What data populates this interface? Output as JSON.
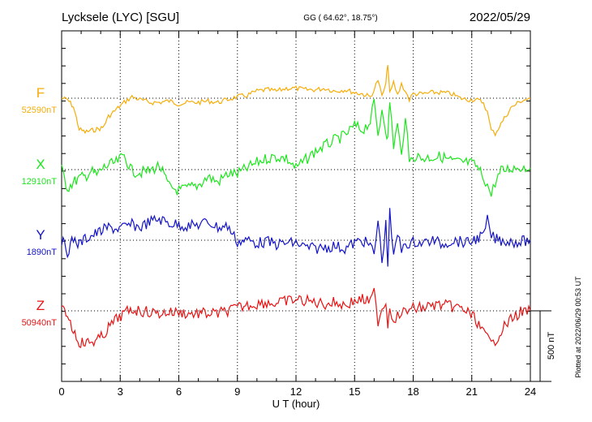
{
  "header": {
    "station": "Lycksele (LYC)  [SGU]",
    "coords": "GG ( 64.62°,  18.75°)",
    "date": "2022/05/29"
  },
  "footer": {
    "plotted": "Plotted at 2022/06/29 00:53 UT"
  },
  "colors": {
    "F": "#f5ad0a",
    "X": "#1ee61e",
    "Y": "#1414c8",
    "Z": "#e61414",
    "axis": "#000000",
    "grid": "#000000"
  },
  "chart_data": {
    "type": "line",
    "xlabel": "U T (hour)",
    "xlim": [
      0,
      24
    ],
    "xticks": [
      0,
      3,
      6,
      9,
      12,
      15,
      18,
      21,
      24
    ],
    "scale_bar": {
      "value": 500,
      "label": "500 nT"
    },
    "series": [
      {
        "name": "F",
        "baseline_label": "52590nT",
        "baseline": 52590,
        "x": [
          0,
          0.3,
          0.6,
          0.9,
          1.2,
          1.5,
          1.8,
          2.1,
          2.4,
          2.8,
          3.2,
          3.6,
          4.0,
          4.5,
          5.0,
          5.5,
          6.0,
          6.5,
          7.0,
          7.5,
          8.0,
          8.5,
          9.0,
          9.5,
          10.0,
          10.5,
          11.0,
          11.5,
          12.0,
          12.5,
          13.0,
          13.5,
          14.0,
          14.5,
          15.0,
          15.4,
          15.8,
          16.0,
          16.2,
          16.4,
          16.6,
          16.7,
          16.8,
          17.0,
          17.2,
          17.4,
          17.6,
          17.8,
          18.0,
          18.5,
          19.0,
          19.5,
          20.0,
          20.4,
          20.8,
          21.2,
          21.6,
          21.8,
          22.0,
          22.2,
          22.5,
          23.0,
          23.5,
          24.0
        ],
        "values": [
          52590,
          52580,
          52530,
          52370,
          52350,
          52360,
          52370,
          52380,
          52460,
          52510,
          52560,
          52600,
          52580,
          52560,
          52560,
          52570,
          52550,
          52560,
          52560,
          52570,
          52560,
          52580,
          52600,
          52610,
          52640,
          52650,
          52640,
          52660,
          52660,
          52650,
          52650,
          52660,
          52640,
          52650,
          52630,
          52620,
          52600,
          52650,
          52720,
          52600,
          52690,
          52840,
          52620,
          52700,
          52610,
          52690,
          52640,
          52580,
          52620,
          52620,
          52630,
          52630,
          52620,
          52590,
          52580,
          52580,
          52560,
          52490,
          52360,
          52340,
          52410,
          52520,
          52570,
          52590
        ]
      },
      {
        "name": "X",
        "baseline_label": "12910nT",
        "baseline": 12910,
        "x": [
          0,
          0.3,
          0.6,
          0.9,
          1.2,
          1.5,
          1.8,
          2.1,
          2.4,
          2.8,
          3.2,
          3.6,
          4.0,
          4.5,
          5.0,
          5.5,
          6.0,
          6.5,
          7.0,
          7.5,
          8.0,
          8.5,
          9.0,
          9.5,
          10.0,
          10.5,
          11.0,
          11.5,
          12.0,
          12.5,
          13.0,
          13.5,
          14.0,
          14.5,
          15.0,
          15.4,
          15.8,
          16.0,
          16.2,
          16.4,
          16.6,
          16.7,
          16.8,
          17.0,
          17.2,
          17.4,
          17.6,
          17.8,
          18.0,
          18.5,
          19.0,
          19.5,
          20.0,
          20.4,
          20.8,
          21.2,
          21.6,
          21.8,
          22.0,
          22.2,
          22.5,
          23.0,
          23.5,
          24.0
        ],
        "values": [
          12910,
          12780,
          12820,
          12850,
          12860,
          12900,
          12870,
          12920,
          12940,
          12960,
          13010,
          12900,
          12890,
          12900,
          12940,
          12790,
          12760,
          12780,
          12800,
          12860,
          12820,
          12880,
          12880,
          12920,
          12960,
          12990,
          13000,
          12990,
          12920,
          12980,
          13040,
          13080,
          13120,
          13150,
          13220,
          13190,
          13250,
          13380,
          13150,
          13340,
          13200,
          13120,
          13400,
          13080,
          13230,
          13000,
          13310,
          12950,
          13010,
          12990,
          13000,
          13000,
          12970,
          12960,
          12960,
          12940,
          12860,
          12800,
          12730,
          12820,
          12900,
          12920,
          12930,
          12920
        ]
      },
      {
        "name": "Y",
        "baseline_label": "1890nT",
        "baseline": 1890,
        "x": [
          0,
          0.3,
          0.6,
          0.9,
          1.2,
          1.5,
          1.8,
          2.1,
          2.4,
          2.8,
          3.2,
          3.6,
          4.0,
          4.5,
          5.0,
          5.5,
          6.0,
          6.5,
          7.0,
          7.5,
          8.0,
          8.5,
          9.0,
          9.5,
          10.0,
          10.5,
          11.0,
          11.5,
          12.0,
          12.5,
          13.0,
          13.5,
          14.0,
          14.5,
          15.0,
          15.4,
          15.8,
          16.0,
          16.2,
          16.4,
          16.6,
          16.7,
          16.8,
          17.0,
          17.2,
          17.4,
          17.6,
          17.8,
          18.0,
          18.5,
          19.0,
          19.5,
          20.0,
          20.4,
          20.8,
          21.2,
          21.6,
          21.8,
          22.0,
          22.2,
          22.5,
          23.0,
          23.5,
          24.0
        ],
        "values": [
          1890,
          1810,
          1900,
          1860,
          1900,
          1920,
          1940,
          1960,
          1980,
          1970,
          1980,
          2000,
          1980,
          2020,
          2040,
          2010,
          2000,
          1990,
          2000,
          2020,
          1980,
          1990,
          1880,
          1890,
          1870,
          1880,
          1860,
          1870,
          1870,
          1840,
          1830,
          1840,
          1850,
          1830,
          1870,
          1890,
          1850,
          1790,
          2030,
          1740,
          2000,
          1730,
          2080,
          1760,
          1940,
          1820,
          1900,
          1830,
          1880,
          1870,
          1890,
          1860,
          1890,
          1880,
          1870,
          1900,
          1920,
          2030,
          1920,
          1900,
          1890,
          1880,
          1880,
          1890
        ]
      },
      {
        "name": "Z",
        "baseline_label": "50940nT",
        "baseline": 50940,
        "x": [
          0,
          0.3,
          0.6,
          0.9,
          1.2,
          1.5,
          1.8,
          2.1,
          2.4,
          2.8,
          3.2,
          3.6,
          4.0,
          4.5,
          5.0,
          5.5,
          6.0,
          6.5,
          7.0,
          7.5,
          8.0,
          8.5,
          9.0,
          9.5,
          10.0,
          10.5,
          11.0,
          11.5,
          12.0,
          12.5,
          13.0,
          13.5,
          14.0,
          14.5,
          15.0,
          15.4,
          15.8,
          16.0,
          16.2,
          16.4,
          16.6,
          16.7,
          16.8,
          17.0,
          17.2,
          17.4,
          17.6,
          17.8,
          18.0,
          18.5,
          19.0,
          19.5,
          20.0,
          20.4,
          20.8,
          21.2,
          21.6,
          21.8,
          22.0,
          22.2,
          22.5,
          23.0,
          23.5,
          24.0
        ],
        "values": [
          50940,
          50920,
          50800,
          50720,
          50710,
          50720,
          50730,
          50760,
          50820,
          50880,
          50920,
          50950,
          50940,
          50930,
          50920,
          50930,
          50930,
          50920,
          50920,
          50920,
          50920,
          50940,
          50960,
          50980,
          50990,
          51000,
          50990,
          51010,
          51020,
          51010,
          51000,
          50990,
          51000,
          50980,
          51010,
          51020,
          51000,
          51070,
          50870,
          50960,
          51000,
          50850,
          50960,
          50880,
          50910,
          50890,
          50970,
          50920,
          50960,
          50960,
          50980,
          50980,
          50970,
          50960,
          50930,
          50880,
          50780,
          50750,
          50700,
          50730,
          50800,
          50880,
          50930,
          50940
        ]
      }
    ]
  }
}
